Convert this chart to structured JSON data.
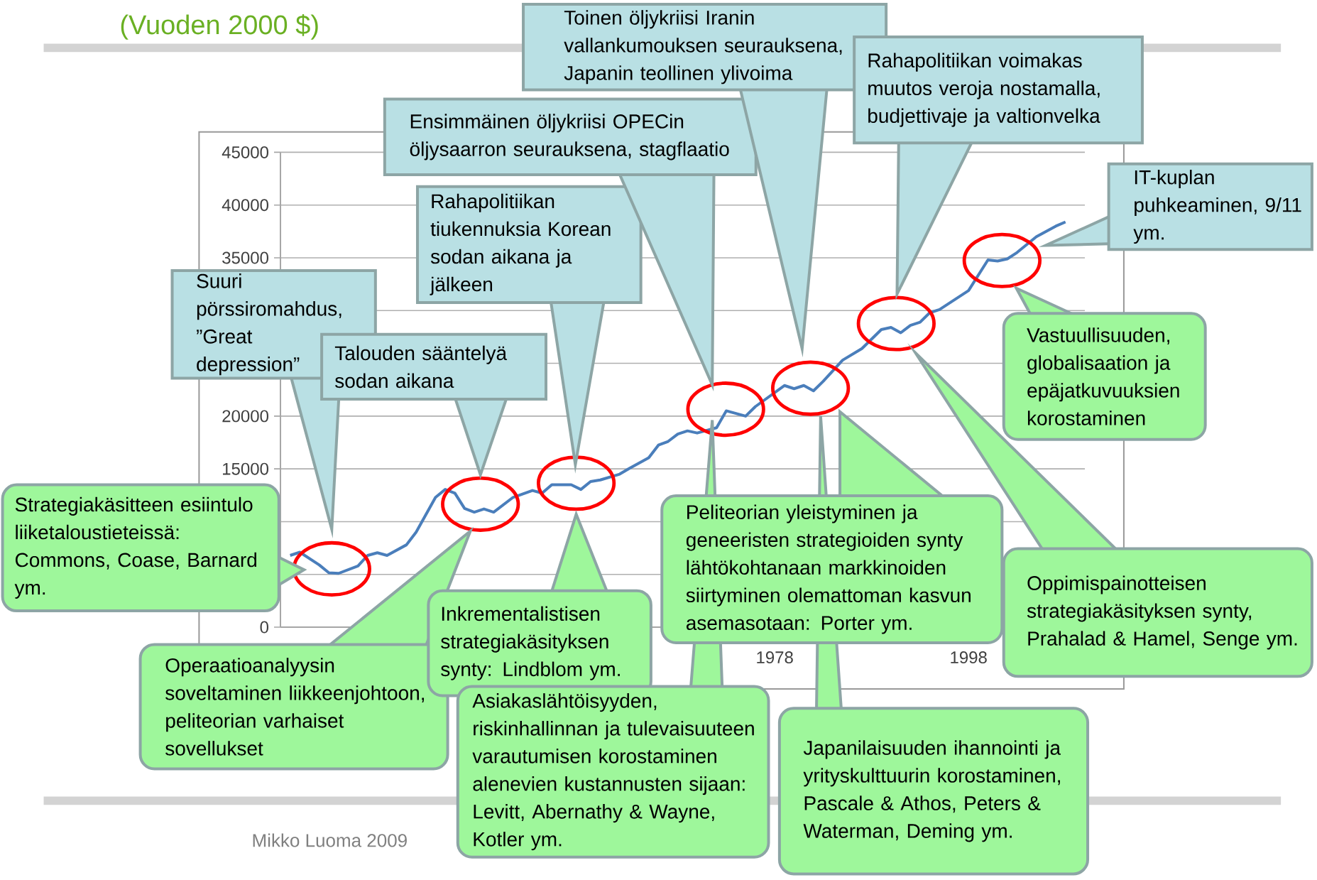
{
  "chart_data": {
    "type": "line",
    "subtitle": "(Vuoden 2000 $)",
    "x": [
      1928,
      1929,
      1931,
      1932,
      1933,
      1935,
      1936,
      1937,
      1938,
      1940,
      1941,
      1943,
      1944,
      1945,
      1946,
      1947,
      1948,
      1949,
      1951,
      1953,
      1954,
      1955,
      1957,
      1958,
      1959,
      1960,
      1962,
      1963,
      1965,
      1966,
      1967,
      1968,
      1969,
      1970,
      1972,
      1973,
      1975,
      1976,
      1979,
      1980,
      1981,
      1982,
      1983,
      1985,
      1987,
      1989,
      1990,
      1991,
      1992,
      1993,
      1994,
      1995,
      1998,
      2000,
      2001,
      2002,
      2003,
      2005,
      2007,
      2008
    ],
    "series": [
      {
        "color": "#4a7ebb",
        "values": [
          6800,
          7100,
          5900,
          5150,
          5100,
          5800,
          6800,
          7050,
          6800,
          7800,
          9000,
          12300,
          13050,
          12700,
          11250,
          10900,
          11200,
          10900,
          12300,
          12950,
          12700,
          13500,
          13500,
          13050,
          13800,
          13950,
          14500,
          15050,
          16050,
          17250,
          17600,
          18300,
          18600,
          18400,
          18900,
          20500,
          20000,
          20900,
          22900,
          22600,
          22900,
          22400,
          23300,
          25300,
          26400,
          28200,
          28400,
          27900,
          28600,
          28900,
          29800,
          30100,
          31900,
          34800,
          34700,
          34900,
          35500,
          37000,
          38000,
          38400
        ]
      }
    ],
    "xlim": [
      1927,
      2010
    ],
    "xticks": [
      1978,
      1998
    ],
    "ylim": [
      0,
      45000
    ],
    "yticks": [
      0,
      {
        "value": 5000,
        "label": null
      },
      {
        "value": 10000,
        "label": null
      },
      15000,
      20000,
      {
        "value": 25000,
        "label": null
      },
      {
        "value": 30000,
        "label": null
      },
      35000,
      40000,
      45000
    ],
    "grid": "y",
    "annotations": [
      "Suuri pörssiromahdus, ”Great depression”",
      "Strategiakäsitteen esiintulo liiketaloustieteissä: Commons, Coase, Barnard ym.",
      "Talouden sääntelyä sodan aikana",
      "Operaatioanalyysin soveltaminen liikkeenjohtoon, peliteorian varhaiset sovellukset",
      "Rahapolitiikan tiukennuksia Korean sodan aikana ja jälkeen",
      "Inkrementalistisen strategiakäsityksen synty: Lindblom ym.",
      "Ensimmäinen öljykriisi OPECin öljysaarron seurauksena, stagflaatio",
      "Asiakaslähtöisyyden, riskinhallinnan ja tulevaisuuteen varautumisen korostaminen alenevien kustannusten sijaan: Levitt, Abernathy & Wayne, Kotler ym.",
      "Toinen öljykriisi Iranin vallankumouksen seurauksena, Japanin teollinen ylivoima",
      "Japanilaisuuden ihannointi ja yrityskulttuurin korostaminen, Pascale & Athos, Peters & Waterman, Deming ym.",
      "Peliteorian yleistyminen ja geneeristen strategioiden synty lähtökohtanaan markkinoiden siirtyminen olemattoman kasvun asemasotaan: Porter ym.",
      "Rahapolitiikan voimakas muutos veroja nostamalla, budjettivaje ja valtionvelka",
      "Oppimispainotteisen strategiakäsityksen synty, Prahalad & Hamel, Senge ym.",
      "Vastuullisuuden, globalisaation ja epäjatkuvuuksien korostaminen",
      "IT-kuplan puhkeaminen, 9/11 ym.",
      "Mikko Luoma 2009"
    ]
  }
}
